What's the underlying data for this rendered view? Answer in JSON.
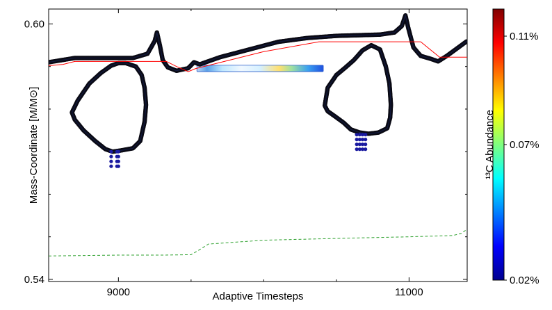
{
  "chart_data": {
    "type": "line",
    "title": "",
    "xlabel": "Adaptive Timesteps",
    "ylabel": "Mass-Coordinate [M/M⊙]",
    "xlim": [
      8520,
      11400
    ],
    "ylim": [
      0.5395,
      0.6035
    ],
    "xticks": [
      9000,
      11000
    ],
    "xtick_labels": [
      "9000",
      "11000"
    ],
    "yticks": [
      0.54,
      0.6
    ],
    "ytick_labels": [
      "0.54",
      "0.60"
    ],
    "grid": false,
    "colorbar": {
      "label": "¹³C Abundance",
      "tick_labels": [
        "0.11%",
        "0.07%",
        "0.02%"
      ],
      "tick_values": [
        0.11,
        0.07,
        0.02
      ],
      "range": [
        0.02,
        0.12
      ],
      "colormap": "jet"
    },
    "series": [
      {
        "kind": "convective-boundary-dots",
        "color": "#000000",
        "x": [
          8520,
          8700,
          8900,
          9100,
          9200,
          9250,
          9265,
          9285,
          9305,
          9340,
          9400,
          9480,
          9520,
          9560,
          9600,
          9700,
          9900,
          10100,
          10300,
          10500,
          10800,
          10900,
          10950,
          10975,
          10995,
          11030,
          11080,
          11150,
          11200,
          11260,
          11320,
          11400
        ],
        "y": [
          0.591,
          0.592,
          0.592,
          0.592,
          0.593,
          0.596,
          0.598,
          0.595,
          0.5915,
          0.5898,
          0.589,
          0.5896,
          0.591,
          0.5905,
          0.591,
          0.5922,
          0.594,
          0.5958,
          0.5967,
          0.5972,
          0.5975,
          0.598,
          0.5995,
          0.602,
          0.599,
          0.5945,
          0.5925,
          0.5918,
          0.5912,
          0.5925,
          0.594,
          0.596
        ]
      },
      {
        "kind": "convective-loop-1",
        "color": "#000000",
        "x": [
          8680,
          8720,
          8800,
          8880,
          8950,
          9000,
          9050,
          9120,
          9160,
          9180,
          9190,
          9180,
          9150,
          9100,
          9020,
          8960,
          8910,
          8840,
          8760,
          8700,
          8680
        ],
        "y": [
          0.5792,
          0.582,
          0.586,
          0.5885,
          0.5902,
          0.5908,
          0.5908,
          0.59,
          0.588,
          0.585,
          0.581,
          0.577,
          0.5725,
          0.5708,
          0.5703,
          0.57,
          0.5706,
          0.5725,
          0.575,
          0.5775,
          0.5792
        ]
      },
      {
        "kind": "convective-loop-2",
        "color": "#000000",
        "x": [
          10420,
          10440,
          10500,
          10560,
          10620,
          10680,
          10740,
          10800,
          10840,
          10865,
          10875,
          10870,
          10850,
          10790,
          10720,
          10660,
          10600,
          10550,
          10490,
          10440,
          10420
        ],
        "y": [
          0.5808,
          0.585,
          0.588,
          0.5897,
          0.5915,
          0.5938,
          0.595,
          0.594,
          0.59,
          0.586,
          0.581,
          0.578,
          0.5755,
          0.5745,
          0.5742,
          0.5745,
          0.5752,
          0.5768,
          0.5783,
          0.5795,
          0.5808
        ]
      },
      {
        "kind": "hydrogen-free-core",
        "color": "#ff0000",
        "x": [
          8520,
          8620,
          8700,
          9150,
          9330,
          9400,
          9480,
          9530,
          10000,
          10380,
          10650,
          11080,
          11210,
          11400
        ],
        "y": [
          0.5902,
          0.5905,
          0.5912,
          0.5912,
          0.5912,
          0.59,
          0.5888,
          0.5895,
          0.5935,
          0.5958,
          0.5958,
          0.5958,
          0.5922,
          0.5922
        ]
      },
      {
        "kind": "helium-free-core",
        "color": "#2ca02c",
        "dash": "dashed",
        "x": [
          8520,
          9000,
          9300,
          9500,
          9560,
          9620,
          10000,
          10600,
          11000,
          11300,
          11360,
          11400
        ],
        "y": [
          0.5455,
          0.5457,
          0.5457,
          0.5458,
          0.547,
          0.5483,
          0.5492,
          0.5497,
          0.55,
          0.5503,
          0.5508,
          0.5518
        ]
      }
    ],
    "c13_pocket": {
      "x_range": [
        9540,
        10410
      ],
      "y_range": [
        0.5888,
        0.5903
      ],
      "peak_abundance": 0.11
    }
  }
}
